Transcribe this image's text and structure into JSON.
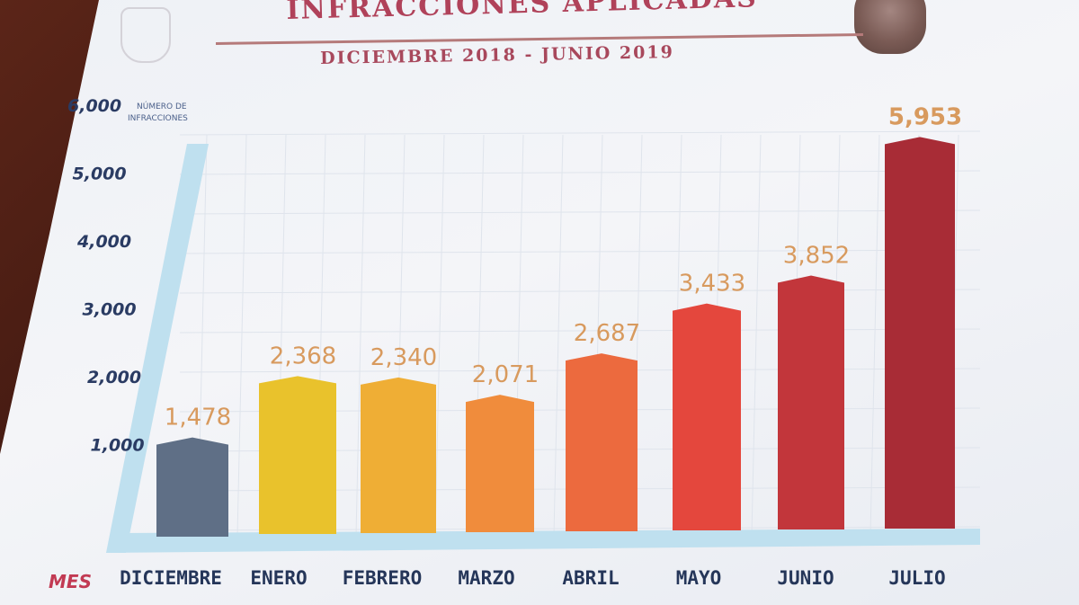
{
  "header": {
    "title": "INFRACCIONES APLICADAS",
    "subtitle": "DICIEMBRE 2018 - JUNIO 2019"
  },
  "chart_data": {
    "type": "bar",
    "title": "INFRACCIONES APLICADAS",
    "subtitle": "DICIEMBRE 2018 - JUNIO 2019",
    "ylabel": "NÚMERO DE INFRACCIONES",
    "xlabel": "MES",
    "categories": [
      "DICIEMBRE",
      "ENERO",
      "FEBRERO",
      "MARZO",
      "ABRIL",
      "MAYO",
      "JUNIO",
      "JULIO"
    ],
    "values": [
      1478,
      2368,
      2340,
      2071,
      2687,
      3433,
      3852,
      5953
    ],
    "value_labels": [
      "1,478",
      "2,368",
      "2,340",
      "2,071",
      "2,687",
      "3,433",
      "3,852",
      "5,953"
    ],
    "yticks": [
      1000,
      2000,
      3000,
      4000,
      5000,
      6000
    ],
    "ytick_labels": [
      "1,000",
      "2,000",
      "3,000",
      "4,000",
      "5,000",
      "6,000"
    ],
    "ylim": [
      0,
      6000
    ],
    "grid": true,
    "bar_colors": [
      "#5f6f86",
      "#e9c22c",
      "#efae35",
      "#f08c3c",
      "#ec6a3e",
      "#e4473d",
      "#c2363b",
      "#a82c36"
    ],
    "label_colors": [
      "#7a8596",
      "#d9a35e",
      "#d9a35e",
      "#d9a35e",
      "#d9a35e",
      "#d99a62",
      "#d9955f",
      "#d9925b"
    ],
    "axis_color": "#bfe0ef"
  }
}
